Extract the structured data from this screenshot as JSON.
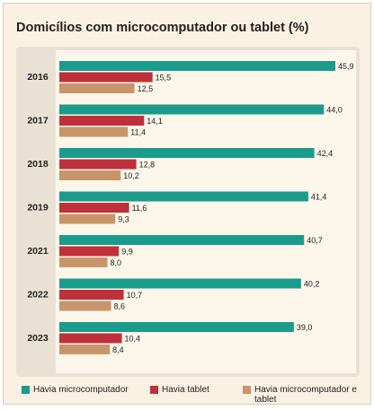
{
  "chart_data": {
    "type": "bar",
    "orientation": "horizontal",
    "title": "Domicílios com microcomputador ou tablet (%)",
    "categories": [
      "2016",
      "2017",
      "2018",
      "2019",
      "2021",
      "2022",
      "2023"
    ],
    "series": [
      {
        "name": "Havia microcomputador",
        "color": "#1a9b8c",
        "values": [
          45.9,
          44.0,
          42.4,
          41.4,
          40.7,
          40.2,
          39.0
        ],
        "value_labels": [
          "45,9",
          "44,0",
          "42,4",
          "41,4",
          "40,7",
          "40,2",
          "39,0"
        ]
      },
      {
        "name": "Havia tablet",
        "color": "#c0303a",
        "values": [
          15.5,
          14.1,
          12.8,
          11.6,
          9.9,
          10.7,
          10.4
        ],
        "value_labels": [
          "15,5",
          "14,1",
          "12,8",
          "11,6",
          "9,9",
          "10,7",
          "10,4"
        ]
      },
      {
        "name": "Havia microcomputador e tablet",
        "color": "#c8956a",
        "values": [
          12.5,
          11.4,
          10.2,
          9.3,
          8.0,
          8.6,
          8.4
        ],
        "value_labels": [
          "12,5",
          "11,4",
          "10,2",
          "9,3",
          "8,0",
          "8,6",
          "8,4"
        ]
      }
    ]
  }
}
